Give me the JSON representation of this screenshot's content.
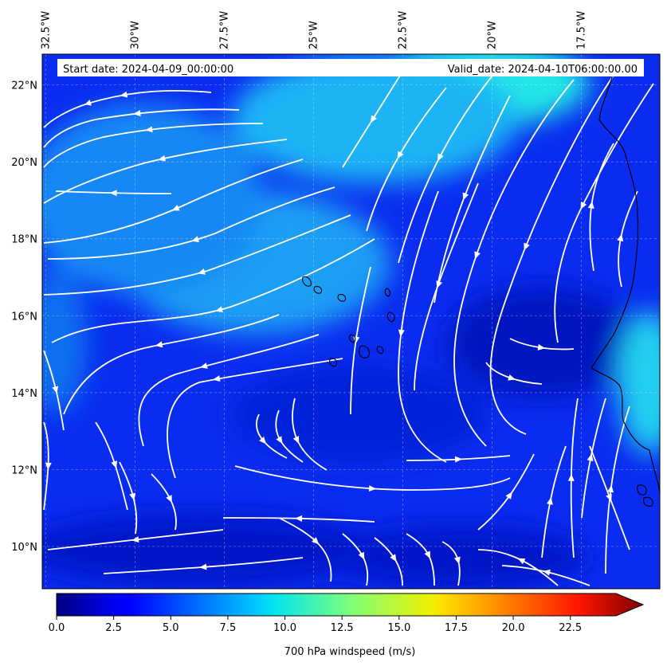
{
  "map": {
    "header": {
      "start_date": "Start date: 2024-04-09_00:00:00",
      "valid_date": "Valid_date: 2024-04-10T06:00:00.00"
    },
    "lon_labels": [
      "32.5°W",
      "30°W",
      "27.5°W",
      "25°W",
      "22.5°W",
      "20°W",
      "17.5°W"
    ],
    "lat_labels": [
      "22°N",
      "20°N",
      "18°N",
      "16°N",
      "14°N",
      "12°N",
      "10°N"
    ],
    "lon_values": [
      -32.5,
      -30,
      -27.5,
      -25,
      -22.5,
      -20,
      -17.5
    ],
    "lat_values": [
      22,
      20,
      18,
      16,
      14,
      12,
      10
    ],
    "extent": {
      "lon_min": -32.6,
      "lon_max": -15.3,
      "lat_min": 8.9,
      "lat_max": 22.8
    },
    "gridlines": true,
    "colorbar": {
      "label": "700 hPa windspeed (m/s)",
      "ticks": [
        "0.0",
        "2.5",
        "5.0",
        "7.5",
        "10.0",
        "12.5",
        "15.0",
        "17.5",
        "20.0",
        "22.5"
      ],
      "min": 0,
      "max": 25,
      "colormap": "jet",
      "extend": "max"
    },
    "colors": {
      "background_wind": "#0a2cf0",
      "streamline": "#ffffff",
      "coastline": "#000000"
    }
  }
}
